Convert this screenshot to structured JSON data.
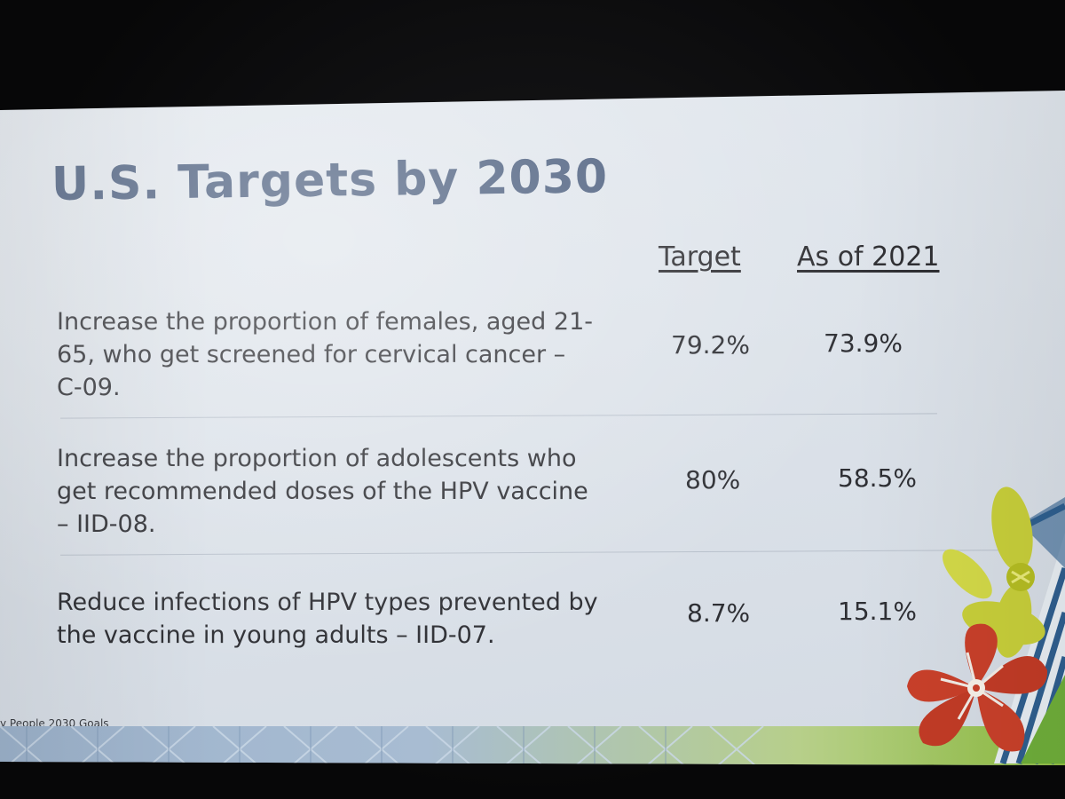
{
  "slide": {
    "title": "U.S. Targets by 2030",
    "columns": {
      "target": "Target",
      "as_of": "As of 2021"
    },
    "rows": [
      {
        "goal": "Increase the proportion of females, aged 21-65, who get screened for cervical cancer – C-09.",
        "target": "79.2%",
        "as_of": "73.9%"
      },
      {
        "goal": "Increase the proportion of adolescents who get recommended doses of the HPV vaccine – IID-08.",
        "target": "80%",
        "as_of": "58.5%"
      },
      {
        "goal": "Reduce infections of HPV types prevented by the vaccine in young adults – IID-07.",
        "target": "8.7%",
        "as_of": "15.1%"
      }
    ],
    "footer_source": "y People 2030 Goals"
  },
  "colors": {
    "title": "#4a5d7d",
    "body_text": "#2e2f34",
    "slide_bg": "#dde3ea",
    "flower_red": "#c9402a",
    "flower_yellow": "#c8cf3a",
    "leaf_stripes": "#2f5f8f"
  },
  "icons": {
    "hibiscus": "hibiscus-flower-icon",
    "yellow_flower": "yellow-flower-icon",
    "striped_leaf": "striped-leaf-icon"
  }
}
